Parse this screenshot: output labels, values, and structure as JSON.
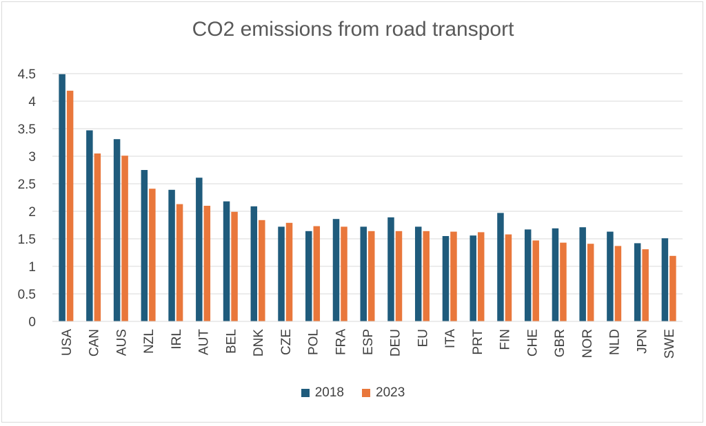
{
  "chart_data": {
    "type": "bar",
    "title": "CO2 emissions from road transport",
    "categories": [
      "USA",
      "CAN",
      "AUS",
      "NZL",
      "IRL",
      "AUT",
      "BEL",
      "DNK",
      "CZE",
      "POL",
      "FRA",
      "ESP",
      "DEU",
      "EU",
      "ITA",
      "PRT",
      "FIN",
      "CHE",
      "GBR",
      "NOR",
      "NLD",
      "JPN",
      "SWE"
    ],
    "series": [
      {
        "name": "2018",
        "color": "#1f5b7c",
        "values": [
          4.49,
          3.47,
          3.31,
          2.75,
          2.39,
          2.61,
          2.18,
          2.09,
          1.72,
          1.64,
          1.86,
          1.72,
          1.89,
          1.72,
          1.55,
          1.56,
          1.97,
          1.67,
          1.69,
          1.71,
          1.63,
          1.42,
          1.51
        ]
      },
      {
        "name": "2023",
        "color": "#e9773b",
        "values": [
          4.19,
          3.05,
          3.01,
          2.41,
          2.13,
          2.1,
          1.99,
          1.84,
          1.79,
          1.73,
          1.72,
          1.64,
          1.64,
          1.64,
          1.63,
          1.62,
          1.58,
          1.47,
          1.43,
          1.41,
          1.37,
          1.31,
          1.19
        ]
      }
    ],
    "ylim": [
      0,
      4.5
    ],
    "yticks": [
      "0",
      "0.5",
      "1",
      "1.5",
      "2",
      "2.5",
      "3",
      "3.5",
      "4",
      "4.5"
    ],
    "grid": true,
    "legend_position": "bottom"
  }
}
